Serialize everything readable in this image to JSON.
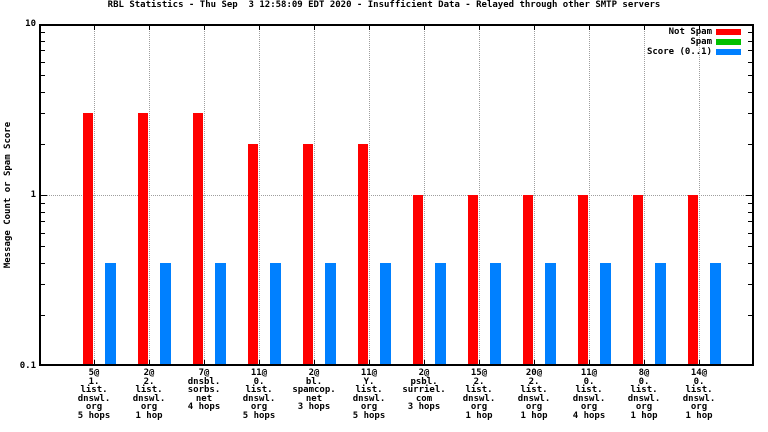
{
  "chart_data": {
    "type": "bar",
    "title": "RBL Statistics - Thu Sep  3 12:58:09 EDT 2020 - Insufficient Data - Relayed through other SMTP servers",
    "ylabel": "Message Count or Spam Score",
    "xlabel": "",
    "yscale": "log",
    "ylim": [
      0.1,
      10
    ],
    "yticks": [
      {
        "value": 10,
        "label": "10"
      },
      {
        "value": 1,
        "label": "1"
      },
      {
        "value": 0.1,
        "label": "0.1"
      }
    ],
    "grid": true,
    "legend_position": "top-right",
    "background_color": "#ffffff",
    "grid_color": "#9e9e9e",
    "categories": [
      [
        "5@",
        "1.",
        "list.",
        "dnswl.",
        "org",
        "5 hops"
      ],
      [
        "2@",
        "2.",
        "list.",
        "dnswl.",
        "org",
        "1 hop"
      ],
      [
        "7@",
        "dnsbl.",
        "sorbs.",
        "net",
        "4 hops"
      ],
      [
        "11@",
        "0.",
        "list.",
        "dnswl.",
        "org",
        "5 hops"
      ],
      [
        "2@",
        "bl.",
        "spamcop.",
        "net",
        "3 hops"
      ],
      [
        "11@",
        "Y.",
        "list.",
        "dnswl.",
        "org",
        "5 hops"
      ],
      [
        "2@",
        "psbl.",
        "surriel.",
        "com",
        "3 hops"
      ],
      [
        "15@",
        "2.",
        "list.",
        "dnswl.",
        "org",
        "1 hop"
      ],
      [
        "20@",
        "2.",
        "list.",
        "dnswl.",
        "org",
        "1 hop"
      ],
      [
        "11@",
        "0.",
        "list.",
        "dnswl.",
        "org",
        "4 hops"
      ],
      [
        "8@",
        "0.",
        "list.",
        "dnswl.",
        "org",
        "1 hop"
      ],
      [
        "14@",
        "0.",
        "list.",
        "dnswl.",
        "org",
        "1 hop"
      ]
    ],
    "series": [
      {
        "name": "Not Spam",
        "color": "#ff0000",
        "values": [
          3,
          3,
          3,
          2,
          2,
          2,
          1,
          1,
          1,
          1,
          1,
          1
        ]
      },
      {
        "name": "Spam",
        "color": "#00c000",
        "values": [
          0,
          0,
          0,
          0,
          0,
          0,
          0,
          0,
          0,
          0,
          0,
          0
        ]
      },
      {
        "name": "Score (0..1)",
        "color": "#0080ff",
        "values": [
          0.4,
          0.4,
          0.4,
          0.4,
          0.4,
          0.4,
          0.4,
          0.4,
          0.4,
          0.4,
          0.4,
          0.4
        ]
      }
    ]
  }
}
